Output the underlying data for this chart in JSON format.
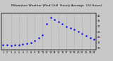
{
  "title": "Milwaukee Weather Wind Chill  Hourly Average  (24 Hours)",
  "x_hours": [
    1,
    2,
    3,
    4,
    5,
    6,
    7,
    8,
    9,
    10,
    11,
    12,
    13,
    14,
    15,
    16,
    17,
    18,
    19,
    20,
    21,
    22,
    23,
    24
  ],
  "y_values": [
    13,
    12.5,
    12,
    12.5,
    13,
    13.5,
    14,
    15,
    17,
    19,
    22,
    32,
    38,
    36.5,
    34,
    32,
    30,
    28.5,
    27,
    25,
    23,
    21,
    19.5,
    18
  ],
  "line_color": "#0000ee",
  "grid_color": "#888888",
  "background_color": "#c8c8c8",
  "plot_bg_color": "#c8c8c8",
  "right_yticks": [
    10,
    15,
    20,
    25,
    30,
    35,
    40
  ],
  "right_yticklabels": [
    "10",
    "15",
    "20",
    "25",
    "30",
    "35",
    "40"
  ],
  "ylim": [
    8,
    42
  ],
  "xlim": [
    0.5,
    24.5
  ],
  "title_fontsize": 3.2,
  "tick_fontsize": 2.5,
  "marker_size": 1.5,
  "vgrid_positions": [
    1,
    3,
    5,
    7,
    9,
    11,
    13,
    15,
    17,
    19,
    21,
    23
  ]
}
